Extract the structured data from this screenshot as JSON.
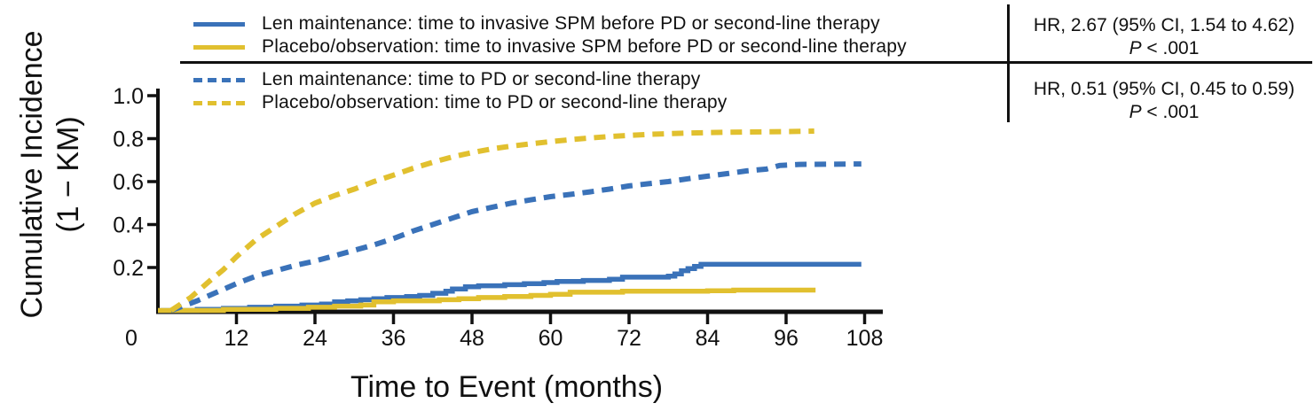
{
  "colors": {
    "len": "#3A72B9",
    "placebo": "#E1C02F",
    "axis": "#111111"
  },
  "chart_data": {
    "type": "line",
    "title": "",
    "xlabel": "Time to Event (months)",
    "ylabel": "Cumulative Incidence (1 − KM)",
    "ylabel_line1": "Cumulative Incidence",
    "ylabel_line2": "(1 − KM)",
    "xlim": [
      0,
      111
    ],
    "ylim": [
      0,
      1.0
    ],
    "x_ticks": [
      0,
      12,
      24,
      36,
      48,
      60,
      72,
      84,
      96,
      108
    ],
    "y_ticks": [
      {
        "v": 0.2,
        "label": "0.2"
      },
      {
        "v": 0.4,
        "label": "0.4"
      },
      {
        "v": 0.6,
        "label": "0.6"
      },
      {
        "v": 0.8,
        "label": "0.8"
      },
      {
        "v": 1.0,
        "label": "1.0"
      }
    ],
    "grid": false,
    "legend_position": "top",
    "series": [
      {
        "key": "len-spm",
        "name": "Len maintenance: time to invasive SPM before PD or second-line therapy",
        "color_key": "len",
        "style": "solid",
        "interp": "step",
        "points": [
          [
            0,
            0
          ],
          [
            6,
            0.005
          ],
          [
            10,
            0.01
          ],
          [
            14,
            0.015
          ],
          [
            18,
            0.02
          ],
          [
            22,
            0.025
          ],
          [
            25,
            0.03
          ],
          [
            27,
            0.04
          ],
          [
            29,
            0.045
          ],
          [
            31,
            0.05
          ],
          [
            33,
            0.055
          ],
          [
            35,
            0.06
          ],
          [
            38,
            0.065
          ],
          [
            40,
            0.07
          ],
          [
            42,
            0.08
          ],
          [
            44,
            0.09
          ],
          [
            45,
            0.1
          ],
          [
            47,
            0.11
          ],
          [
            49,
            0.115
          ],
          [
            53,
            0.12
          ],
          [
            56,
            0.125
          ],
          [
            59,
            0.13
          ],
          [
            61,
            0.135
          ],
          [
            65,
            0.14
          ],
          [
            69,
            0.145
          ],
          [
            71,
            0.155
          ],
          [
            78,
            0.16
          ],
          [
            79,
            0.17
          ],
          [
            80,
            0.185
          ],
          [
            81,
            0.195
          ],
          [
            82,
            0.205
          ],
          [
            83,
            0.215
          ],
          [
            107.5,
            0.215
          ]
        ]
      },
      {
        "key": "placebo-spm",
        "name": "Placebo/observation: time to invasive SPM before PD or second-line therapy",
        "color_key": "placebo",
        "style": "solid",
        "interp": "step",
        "points": [
          [
            0,
            0
          ],
          [
            10,
            0.005
          ],
          [
            18,
            0.01
          ],
          [
            23,
            0.015
          ],
          [
            27,
            0.02
          ],
          [
            31,
            0.025
          ],
          [
            33,
            0.04
          ],
          [
            36,
            0.045
          ],
          [
            43,
            0.05
          ],
          [
            46,
            0.055
          ],
          [
            49,
            0.06
          ],
          [
            53,
            0.065
          ],
          [
            57,
            0.07
          ],
          [
            60,
            0.075
          ],
          [
            63,
            0.085
          ],
          [
            71,
            0.09
          ],
          [
            84,
            0.092
          ],
          [
            88,
            0.095
          ],
          [
            100.5,
            0.095
          ]
        ]
      },
      {
        "key": "len-pd",
        "name": "Len maintenance: time to PD or second-line therapy",
        "color_key": "len",
        "style": "dashed",
        "interp": "linear",
        "points": [
          [
            2,
            0
          ],
          [
            6,
            0.045
          ],
          [
            9,
            0.085
          ],
          [
            12,
            0.125
          ],
          [
            15,
            0.16
          ],
          [
            18,
            0.185
          ],
          [
            21,
            0.21
          ],
          [
            24,
            0.23
          ],
          [
            27,
            0.255
          ],
          [
            30,
            0.28
          ],
          [
            33,
            0.305
          ],
          [
            36,
            0.335
          ],
          [
            39,
            0.37
          ],
          [
            42,
            0.4
          ],
          [
            45,
            0.43
          ],
          [
            48,
            0.46
          ],
          [
            51,
            0.48
          ],
          [
            54,
            0.5
          ],
          [
            57,
            0.515
          ],
          [
            60,
            0.53
          ],
          [
            63,
            0.54
          ],
          [
            66,
            0.552
          ],
          [
            69,
            0.565
          ],
          [
            72,
            0.58
          ],
          [
            75,
            0.59
          ],
          [
            78,
            0.6
          ],
          [
            81,
            0.613
          ],
          [
            84,
            0.625
          ],
          [
            87,
            0.637
          ],
          [
            90,
            0.65
          ],
          [
            93,
            0.658
          ],
          [
            95,
            0.675
          ],
          [
            98,
            0.68
          ],
          [
            107.5,
            0.682
          ]
        ]
      },
      {
        "key": "placebo-pd",
        "name": "Placebo/observation: time to PD or second-line therapy",
        "color_key": "placebo",
        "style": "dashed",
        "interp": "linear",
        "points": [
          [
            2,
            0
          ],
          [
            5,
            0.06
          ],
          [
            8,
            0.14
          ],
          [
            10,
            0.19
          ],
          [
            12,
            0.25
          ],
          [
            15,
            0.33
          ],
          [
            18,
            0.39
          ],
          [
            21,
            0.45
          ],
          [
            24,
            0.5
          ],
          [
            27,
            0.535
          ],
          [
            30,
            0.565
          ],
          [
            33,
            0.6
          ],
          [
            36,
            0.63
          ],
          [
            39,
            0.662
          ],
          [
            42,
            0.69
          ],
          [
            45,
            0.715
          ],
          [
            48,
            0.735
          ],
          [
            51,
            0.752
          ],
          [
            54,
            0.765
          ],
          [
            57,
            0.776
          ],
          [
            60,
            0.786
          ],
          [
            63,
            0.795
          ],
          [
            66,
            0.803
          ],
          [
            69,
            0.81
          ],
          [
            72,
            0.815
          ],
          [
            75,
            0.82
          ],
          [
            78,
            0.823
          ],
          [
            81,
            0.826
          ],
          [
            84,
            0.828
          ],
          [
            90,
            0.831
          ],
          [
            96,
            0.833
          ],
          [
            100.3,
            0.835
          ]
        ]
      }
    ],
    "annotations": [
      {
        "hr": "HR, 2.67 (95% CI, 1.54 to 4.62)",
        "p_label": "P",
        "p_rest": " < .001"
      },
      {
        "hr": "HR, 0.51 (95% CI, 0.45 to 0.59)",
        "p_label": "P",
        "p_rest": " < .001"
      }
    ]
  }
}
